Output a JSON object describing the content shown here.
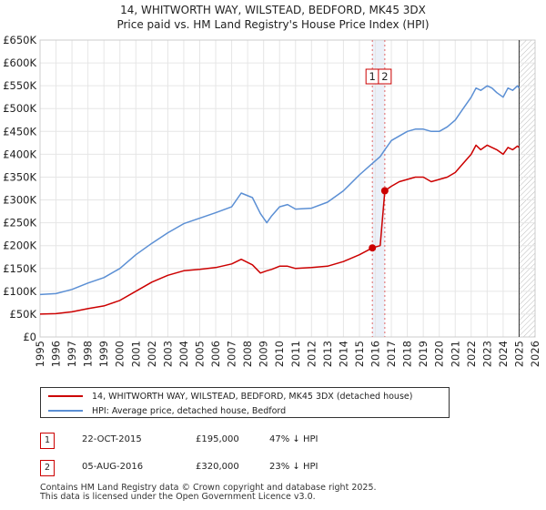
{
  "chart_data": {
    "type": "line",
    "title": "14, WHITWORTH WAY, WILSTEAD, BEDFORD, MK45 3DX",
    "subtitle": "Price paid vs. HM Land Registry's House Price Index (HPI)",
    "xlabel": "",
    "ylabel": "",
    "xlim": [
      1995,
      2026
    ],
    "ylim": [
      0,
      650000
    ],
    "grid": true,
    "x_ticks": [
      "1995",
      "1996",
      "1997",
      "1998",
      "1999",
      "2000",
      "2001",
      "2002",
      "2003",
      "2004",
      "2005",
      "2006",
      "2007",
      "2008",
      "2009",
      "2010",
      "2011",
      "2012",
      "2013",
      "2014",
      "2015",
      "2016",
      "2017",
      "2018",
      "2019",
      "2020",
      "2021",
      "2022",
      "2023",
      "2024",
      "2025",
      "2026"
    ],
    "y_ticks": [
      {
        "value": 0,
        "label": "£0"
      },
      {
        "value": 50000,
        "label": "£50K"
      },
      {
        "value": 100000,
        "label": "£100K"
      },
      {
        "value": 150000,
        "label": "£150K"
      },
      {
        "value": 200000,
        "label": "£200K"
      },
      {
        "value": 250000,
        "label": "£250K"
      },
      {
        "value": 300000,
        "label": "£300K"
      },
      {
        "value": 350000,
        "label": "£350K"
      },
      {
        "value": 400000,
        "label": "£400K"
      },
      {
        "value": 450000,
        "label": "£450K"
      },
      {
        "value": 500000,
        "label": "£500K"
      },
      {
        "value": 550000,
        "label": "£550K"
      },
      {
        "value": 600000,
        "label": "£600K"
      },
      {
        "value": 650000,
        "label": "£650K"
      }
    ],
    "hatch_from": 2025.0,
    "series": [
      {
        "name": "14, WHITWORTH WAY, WILSTEAD, BEDFORD, MK45 3DX (detached house)",
        "color": "#cc0000",
        "x": [
          1995.0,
          1996.0,
          1997.0,
          1998.0,
          1999.0,
          2000.0,
          2001.0,
          2002.0,
          2003.0,
          2004.0,
          2005.0,
          2006.0,
          2007.0,
          2007.6,
          2008.3,
          2008.8,
          2009.2,
          2009.5,
          2010.0,
          2010.5,
          2011.0,
          2012.0,
          2013.0,
          2014.0,
          2015.0,
          2015.81,
          2016.3,
          2016.59,
          2017.0,
          2017.5,
          2018.0,
          2018.5,
          2019.0,
          2019.5,
          2020.0,
          2020.5,
          2021.0,
          2021.5,
          2022.0,
          2022.3,
          2022.6,
          2023.0,
          2023.3,
          2023.6,
          2024.0,
          2024.3,
          2024.6,
          2024.9,
          2025.0
        ],
        "y": [
          50000,
          51000,
          55000,
          62000,
          68000,
          80000,
          100000,
          120000,
          135000,
          145000,
          148000,
          152000,
          160000,
          170000,
          158000,
          140000,
          145000,
          148000,
          155000,
          155000,
          150000,
          152000,
          155000,
          165000,
          180000,
          195000,
          200000,
          320000,
          330000,
          340000,
          345000,
          350000,
          350000,
          340000,
          345000,
          350000,
          360000,
          380000,
          400000,
          420000,
          410000,
          420000,
          415000,
          410000,
          400000,
          415000,
          410000,
          418000,
          415000
        ]
      },
      {
        "name": "HPI: Average price, detached house, Bedford",
        "color": "#5b8fd4",
        "x": [
          1995.0,
          1996.0,
          1997.0,
          1998.0,
          1999.0,
          2000.0,
          2001.0,
          2002.0,
          2003.0,
          2004.0,
          2005.0,
          2006.0,
          2007.0,
          2007.6,
          2008.3,
          2008.8,
          2009.2,
          2009.5,
          2010.0,
          2010.5,
          2011.0,
          2012.0,
          2013.0,
          2014.0,
          2015.0,
          2015.81,
          2016.3,
          2016.59,
          2017.0,
          2017.5,
          2018.0,
          2018.5,
          2019.0,
          2019.5,
          2020.0,
          2020.5,
          2021.0,
          2021.5,
          2022.0,
          2022.3,
          2022.6,
          2023.0,
          2023.3,
          2023.6,
          2024.0,
          2024.3,
          2024.6,
          2024.9,
          2025.0
        ],
        "y": [
          93000,
          95000,
          104000,
          118000,
          130000,
          150000,
          180000,
          205000,
          228000,
          248000,
          260000,
          272000,
          285000,
          315000,
          305000,
          270000,
          250000,
          265000,
          285000,
          290000,
          280000,
          282000,
          295000,
          320000,
          355000,
          380000,
          395000,
          410000,
          430000,
          440000,
          450000,
          455000,
          455000,
          450000,
          450000,
          460000,
          475000,
          500000,
          525000,
          545000,
          540000,
          550000,
          545000,
          535000,
          525000,
          545000,
          540000,
          550000,
          545000
        ]
      }
    ],
    "markers": [
      {
        "label": "1",
        "x": 2015.81,
        "y": 195000
      },
      {
        "label": "2",
        "x": 2016.59,
        "y": 320000
      }
    ]
  },
  "title_line1": "14, WHITWORTH WAY, WILSTEAD, BEDFORD, MK45 3DX",
  "title_line2": "Price paid vs. HM Land Registry's House Price Index (HPI)",
  "legend": {
    "items": [
      {
        "label": "14, WHITWORTH WAY, WILSTEAD, BEDFORD, MK45 3DX (detached house)",
        "color": "#cc0000"
      },
      {
        "label": "HPI: Average price, detached house, Bedford",
        "color": "#5b8fd4"
      }
    ]
  },
  "transactions": [
    {
      "num": "1",
      "date": "22-OCT-2015",
      "price": "£195,000",
      "hpi": "47% ↓ HPI"
    },
    {
      "num": "2",
      "date": "05-AUG-2016",
      "price": "£320,000",
      "hpi": "23% ↓ HPI"
    }
  ],
  "footer": {
    "line1": "Contains HM Land Registry data © Crown copyright and database right 2025.",
    "line2": "This data is licensed under the Open Government Licence v3.0."
  },
  "colors": {
    "property": "#cc0000",
    "hpi": "#5b8fd4",
    "grid": "#e6e6e6",
    "highlight": "#dde6f4"
  }
}
